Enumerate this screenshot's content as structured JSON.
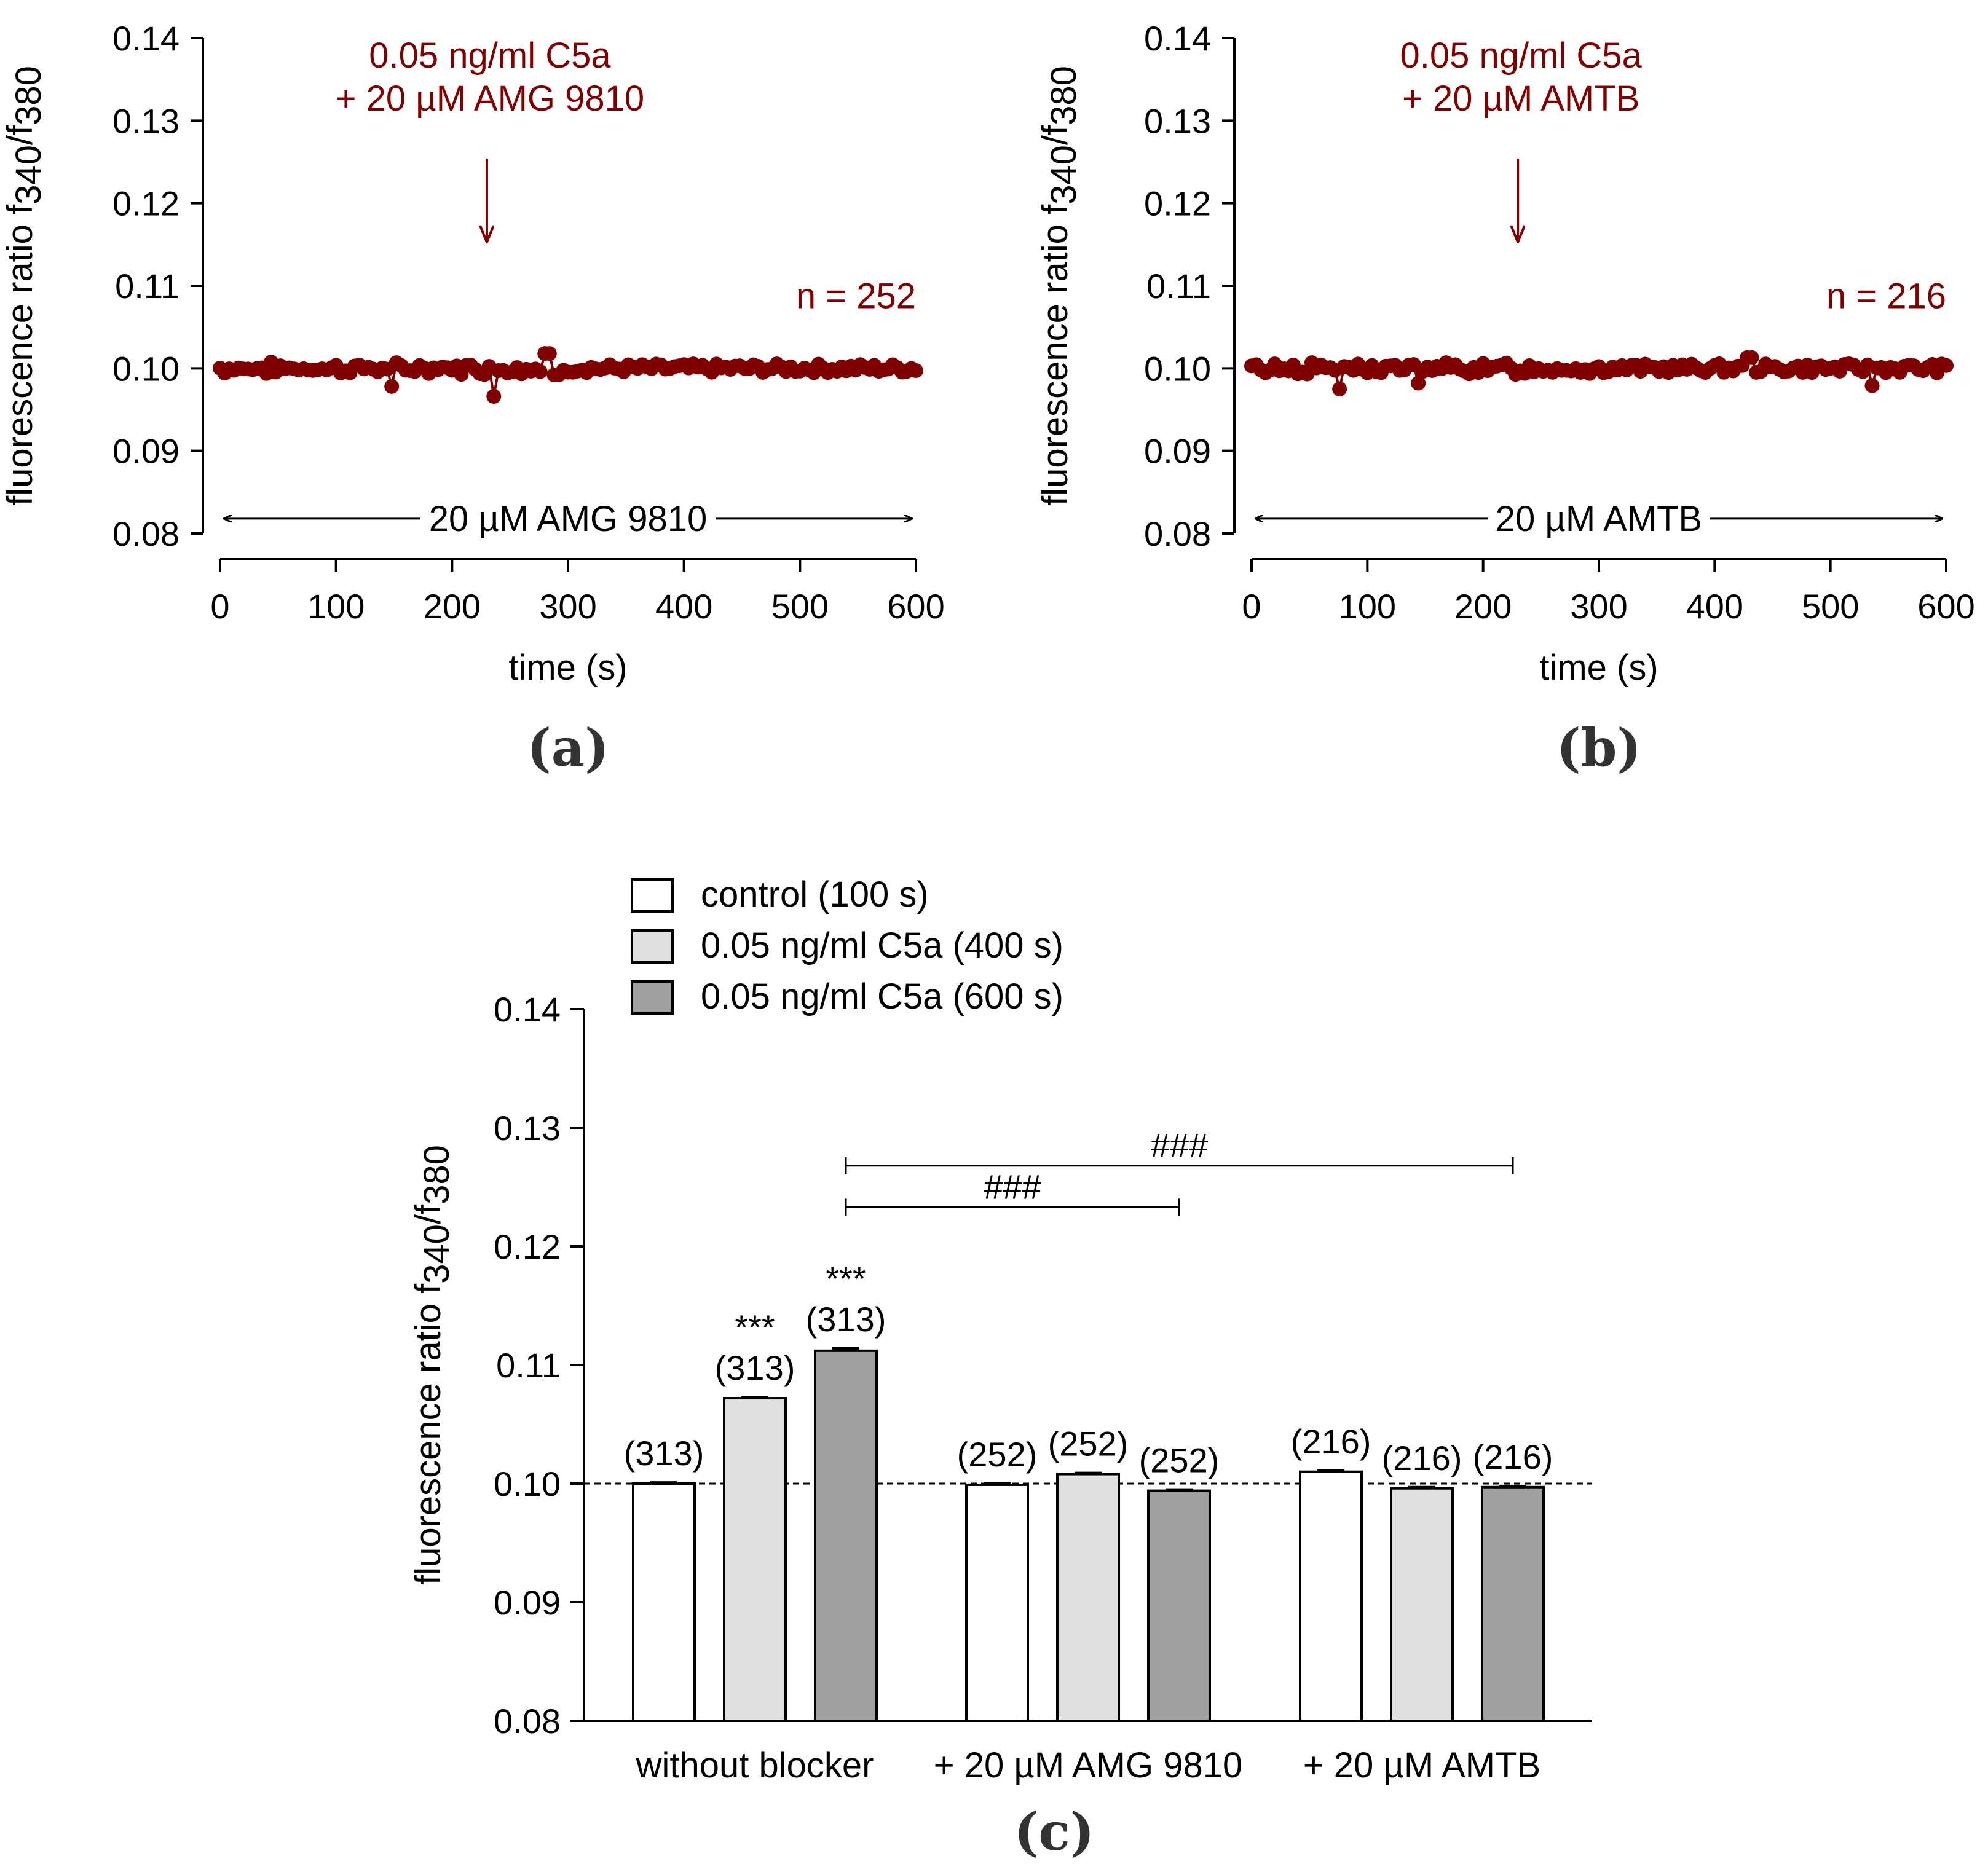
{
  "colors": {
    "trace": "#7f0000",
    "control": "#ffffff",
    "c5a400": "#e0e0e0",
    "c5a600": "#a0a0a0"
  },
  "chart_data": [
    {
      "panel": "(a)",
      "type": "line",
      "ylabel": "fluorescence ratio f340/f380",
      "ylabel_base": "fluorescence ratio f",
      "ylabel_sub1": "340",
      "ylabel_slash": "/f",
      "ylabel_sub2": "380",
      "xlabel": "time (s)",
      "ylim": [
        0.08,
        0.14
      ],
      "xlim": [
        0,
        600
      ],
      "yticks": [
        "0.08",
        "0.09",
        "0.10",
        "0.11",
        "0.12",
        "0.13",
        "0.14"
      ],
      "xticks": [
        "0",
        "100",
        "200",
        "300",
        "400",
        "500",
        "600"
      ],
      "annotation_line1": "0.05 ng/ml C5a",
      "annotation_line2": "+ 20 µM AMG 9810",
      "arrow_time": 230,
      "n_label": "n = 252",
      "blocker_label": "20 µM AMG 9810",
      "trace_seed": 7,
      "dips": [
        [
          148,
          0.0978
        ],
        [
          235,
          0.0966
        ],
        [
          282,
          0.1018
        ],
        [
          290,
          0.0992
        ]
      ]
    },
    {
      "panel": "(b)",
      "type": "line",
      "ylabel": "fluorescence ratio f340/f380",
      "ylabel_base": "fluorescence ratio f",
      "ylabel_sub1": "340",
      "ylabel_slash": "/f",
      "ylabel_sub2": "380",
      "xlabel": "time (s)",
      "ylim": [
        0.08,
        0.14
      ],
      "xlim": [
        0,
        600
      ],
      "yticks": [
        "0.08",
        "0.09",
        "0.10",
        "0.11",
        "0.12",
        "0.13",
        "0.14"
      ],
      "xticks": [
        "0",
        "100",
        "200",
        "300",
        "400",
        "500",
        "600"
      ],
      "annotation_line1": "0.05 ng/ml C5a",
      "annotation_line2": "+ 20 µM AMTB",
      "arrow_time": 230,
      "n_label": "n = 216",
      "blocker_label": "20 µM AMTB",
      "trace_seed": 13,
      "dips": [
        [
          75,
          0.0975
        ],
        [
          145,
          0.0982
        ],
        [
          430,
          0.1013
        ],
        [
          535,
          0.0979
        ]
      ]
    },
    {
      "panel": "(c)",
      "type": "bar",
      "ylabel": "fluorescence ratio f340/f380",
      "ylabel_base": "fluorescence ratio f",
      "ylabel_sub1": "340",
      "ylabel_slash": "/f",
      "ylabel_sub2": "380",
      "ylim": [
        0.08,
        0.14
      ],
      "yticks": [
        "0.08",
        "0.09",
        "0.10",
        "0.11",
        "0.12",
        "0.13",
        "0.14"
      ],
      "baseline": 0.1,
      "groups": [
        "without blocker",
        "+ 20 µM AMG 9810",
        "+ 20 µM AMTB"
      ],
      "legend": [
        "control (100 s)",
        "0.05 ng/ml C5a (400 s)",
        "0.05 ng/ml C5a (600 s)"
      ],
      "series": [
        {
          "name": "control (100 s)",
          "values": [
            0.1,
            0.0999,
            0.101
          ],
          "errors": [
            0.0001,
            0.0001,
            0.0001
          ],
          "n": [
            "(313)",
            "(252)",
            "(216)"
          ],
          "sig": [
            "",
            "",
            ""
          ]
        },
        {
          "name": "0.05 ng/ml C5a (400 s)",
          "values": [
            0.1072,
            0.1008,
            0.0996
          ],
          "errors": [
            0.0001,
            0.0001,
            0.0001
          ],
          "n": [
            "(313)",
            "(252)",
            "(216)"
          ],
          "sig": [
            "***",
            "",
            ""
          ]
        },
        {
          "name": "0.05 ng/ml C5a (600 s)",
          "values": [
            0.1112,
            0.0994,
            0.0997
          ],
          "errors": [
            0.0002,
            0.0001,
            0.0001
          ],
          "n": [
            "(313)",
            "(252)",
            "(216)"
          ],
          "sig": [
            "***",
            "",
            ""
          ]
        }
      ],
      "comparisons": [
        {
          "from_bar": [
            0,
            2
          ],
          "to_bar": [
            2,
            2
          ],
          "level": 0.1268,
          "label": "###"
        },
        {
          "from_bar": [
            0,
            2
          ],
          "to_bar": [
            1,
            2
          ],
          "level": 0.1233,
          "label": "###"
        }
      ]
    }
  ]
}
